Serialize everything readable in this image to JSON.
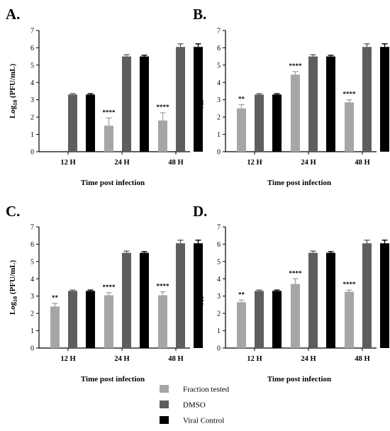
{
  "legend": [
    {
      "label": "Fraction tested",
      "color": "#a6a6a6"
    },
    {
      "label": "DMSO",
      "color": "#5e5e5e"
    },
    {
      "label": "Viral Control",
      "color": "#000000"
    }
  ],
  "chart_data": [
    {
      "panel": "A.",
      "type": "bar",
      "categories": [
        "12 H",
        "24 H",
        "48 H"
      ],
      "xlabel": "Time post infection",
      "ylabel_base": "Log",
      "ylabel_sub": "10",
      "ylabel_rest": " (PFU/mL)",
      "ylim": [
        0,
        7
      ],
      "yticks": [
        "0",
        "1",
        "2",
        "3",
        "4",
        "5",
        "6",
        "7"
      ],
      "series": [
        {
          "name": "Fraction tested",
          "values": [
            0,
            1.5,
            1.8
          ],
          "errors": [
            0,
            0.45,
            0.45
          ],
          "sig": [
            "",
            "****",
            "****"
          ]
        },
        {
          "name": "DMSO",
          "values": [
            3.3,
            5.5,
            6.05
          ],
          "errors": [
            0.05,
            0.1,
            0.18
          ],
          "sig": [
            "",
            "",
            ""
          ]
        },
        {
          "name": "Viral Control",
          "values": [
            3.3,
            5.5,
            6.05
          ],
          "errors": [
            0.05,
            0.07,
            0.18
          ],
          "sig": [
            "",
            "",
            ""
          ]
        }
      ]
    },
    {
      "panel": "B.",
      "type": "bar",
      "categories": [
        "12 H",
        "24 H",
        "48 H"
      ],
      "xlabel": "Time post infection",
      "ylabel_base": "Log",
      "ylabel_sub": "10",
      "ylabel_rest": " (PFU/mL)",
      "ylim": [
        0,
        7
      ],
      "yticks": [
        "0",
        "1",
        "2",
        "3",
        "4",
        "5",
        "6",
        "7"
      ],
      "series": [
        {
          "name": "Fraction tested",
          "values": [
            2.5,
            4.45,
            2.85
          ],
          "errors": [
            0.22,
            0.18,
            0.15
          ],
          "sig": [
            "**",
            "****",
            "****"
          ]
        },
        {
          "name": "DMSO",
          "values": [
            3.3,
            5.5,
            6.05
          ],
          "errors": [
            0.05,
            0.1,
            0.18
          ],
          "sig": [
            "",
            "",
            ""
          ]
        },
        {
          "name": "Viral Control",
          "values": [
            3.3,
            5.5,
            6.05
          ],
          "errors": [
            0.05,
            0.07,
            0.18
          ],
          "sig": [
            "",
            "",
            ""
          ]
        }
      ]
    },
    {
      "panel": "C.",
      "type": "bar",
      "categories": [
        "12 H",
        "24 H",
        "48 H"
      ],
      "xlabel": "Time post infection",
      "ylabel_base": "Log",
      "ylabel_sub": "10",
      "ylabel_rest": " (PFU/mL)",
      "ylim": [
        0,
        7
      ],
      "yticks": [
        "0",
        "1",
        "2",
        "3",
        "4",
        "5",
        "6",
        "7"
      ],
      "series": [
        {
          "name": "Fraction tested",
          "values": [
            2.4,
            3.05,
            3.05
          ],
          "errors": [
            0.18,
            0.15,
            0.2
          ],
          "sig": [
            "**",
            "****",
            "****"
          ]
        },
        {
          "name": "DMSO",
          "values": [
            3.3,
            5.5,
            6.05
          ],
          "errors": [
            0.05,
            0.1,
            0.18
          ],
          "sig": [
            "",
            "",
            ""
          ]
        },
        {
          "name": "Viral Control",
          "values": [
            3.3,
            5.5,
            6.05
          ],
          "errors": [
            0.05,
            0.07,
            0.18
          ],
          "sig": [
            "",
            "",
            ""
          ]
        }
      ]
    },
    {
      "panel": "D.",
      "type": "bar",
      "categories": [
        "12 H",
        "24 H",
        "48 H"
      ],
      "xlabel": "Time post infection",
      "ylabel_base": "Log",
      "ylabel_sub": "10",
      "ylabel_rest": " (PFU/mL)",
      "ylim": [
        0,
        7
      ],
      "yticks": [
        "0",
        "1",
        "2",
        "3",
        "4",
        "5",
        "6",
        "7"
      ],
      "series": [
        {
          "name": "Fraction tested",
          "values": [
            2.65,
            3.7,
            3.25
          ],
          "errors": [
            0.12,
            0.3,
            0.1
          ],
          "sig": [
            "**",
            "****",
            "****"
          ]
        },
        {
          "name": "DMSO",
          "values": [
            3.3,
            5.5,
            6.05
          ],
          "errors": [
            0.05,
            0.1,
            0.18
          ],
          "sig": [
            "",
            "",
            ""
          ]
        },
        {
          "name": "Viral Control",
          "values": [
            3.3,
            5.5,
            6.05
          ],
          "errors": [
            0.05,
            0.07,
            0.18
          ],
          "sig": [
            "",
            "",
            ""
          ]
        }
      ]
    }
  ]
}
